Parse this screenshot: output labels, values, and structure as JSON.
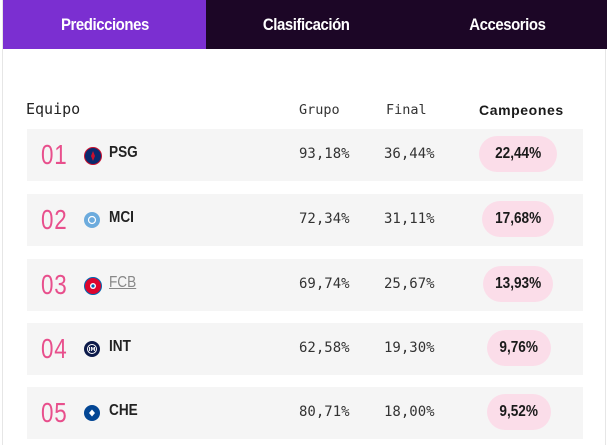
{
  "tabs": [
    {
      "label": "Predicciones",
      "active": true
    },
    {
      "label": "Clasificación",
      "active": false
    },
    {
      "label": "Accesorios",
      "active": false
    }
  ],
  "table": {
    "headers": {
      "team": "Equipo",
      "group": "Grupo",
      "final": "Final",
      "champions": "Campeones"
    },
    "rows": [
      {
        "rank": "01",
        "team": "PSG",
        "logo_icon": "psg-crest-icon",
        "group": "93,18%",
        "final": "36,44%",
        "champions": "22,44%"
      },
      {
        "rank": "02",
        "team": "MCI",
        "logo_icon": "mci-crest-icon",
        "group": "72,34%",
        "final": "31,11%",
        "champions": "17,68%"
      },
      {
        "rank": "03",
        "team": "FCB",
        "logo_icon": "fcb-crest-icon",
        "group": "69,74%",
        "final": "25,67%",
        "champions": "13,93%"
      },
      {
        "rank": "04",
        "team": "INT",
        "logo_icon": "int-crest-icon",
        "group": "62,58%",
        "final": "19,30%",
        "champions": "9,76%"
      },
      {
        "rank": "05",
        "team": "CHE",
        "logo_icon": "che-crest-icon",
        "group": "80,71%",
        "final": "18,00%",
        "champions": "9,52%"
      }
    ]
  },
  "colors": {
    "tab_bar": "#1c0626",
    "tab_active": "#7b2fd1",
    "rank": "#e84f8c",
    "pill": "#fbdde9",
    "row_bg": "#f5f5f5"
  }
}
